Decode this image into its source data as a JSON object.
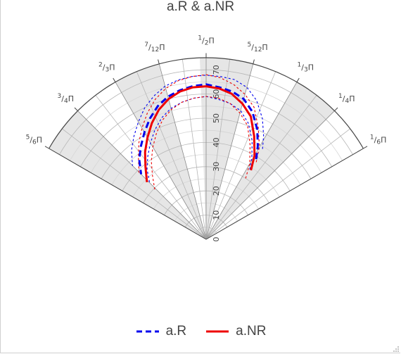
{
  "chart_data": {
    "type": "polar-line",
    "title": "a.R & a.NR",
    "angular_range_deg": [
      30,
      150
    ],
    "radial_range": [
      0,
      75
    ],
    "radial_ticks": [
      "0",
      "10",
      "20",
      "30",
      "40",
      "50",
      "60",
      "70"
    ],
    "angular_tick_labels": [
      {
        "angle_deg": 30,
        "num": "1",
        "den": "6",
        "sym": "Π"
      },
      {
        "angle_deg": 45,
        "num": "1",
        "den": "4",
        "sym": "Π"
      },
      {
        "angle_deg": 60,
        "num": "1",
        "den": "3",
        "sym": "Π"
      },
      {
        "angle_deg": 75,
        "num": "5",
        "den": "12",
        "sym": "Π"
      },
      {
        "angle_deg": 90,
        "num": "1",
        "den": "2",
        "sym": "Π"
      },
      {
        "angle_deg": 105,
        "num": "7",
        "den": "12",
        "sym": "Π"
      },
      {
        "angle_deg": 120,
        "num": "2",
        "den": "3",
        "sym": "Π"
      },
      {
        "angle_deg": 135,
        "num": "3",
        "den": "4",
        "sym": "Π"
      },
      {
        "angle_deg": 150,
        "num": "5",
        "den": "6",
        "sym": "Π"
      }
    ],
    "shaded_sectors_deg": [
      [
        45,
        60
      ],
      [
        75,
        90
      ],
      [
        105,
        120
      ],
      [
        135,
        150
      ],
      [
        88,
        92
      ]
    ],
    "series": [
      {
        "name": "a.R",
        "color": "#0000ee",
        "dash": "dashed",
        "theta_deg": [
          58,
          61,
          65,
          70,
          75,
          80,
          85,
          90,
          95,
          100,
          105,
          110,
          115,
          120,
          125,
          130,
          135
        ],
        "r": [
          39,
          44,
          50,
          56,
          60,
          62,
          63,
          64,
          63.5,
          62.5,
          61,
          58.5,
          55,
          51,
          47,
          43,
          38
        ],
        "band_upper": [
          44,
          49,
          55,
          61,
          65,
          67,
          67.5,
          67.8,
          67.5,
          66.8,
          65.5,
          63,
          60,
          56,
          52,
          48,
          43
        ],
        "band_lower": [
          34,
          39,
          45,
          51,
          55,
          57,
          58,
          59,
          58.5,
          57.5,
          56,
          53.5,
          50,
          46,
          42,
          38,
          33
        ]
      },
      {
        "name": "a.NR",
        "color": "#ee0000",
        "dash": "solid",
        "theta_deg": [
          57,
          60,
          65,
          70,
          75,
          80,
          85,
          90,
          95,
          100,
          105,
          110,
          115,
          120,
          125,
          130,
          136
        ],
        "r": [
          34,
          40,
          47,
          54,
          58,
          61,
          62.5,
          63.2,
          63,
          62,
          60,
          57,
          53,
          48.5,
          44,
          39,
          34
        ],
        "band_upper": [
          38,
          44,
          51,
          58,
          62,
          65,
          67,
          68,
          67.5,
          66.5,
          64.5,
          61.5,
          57.5,
          53,
          48.5,
          43.5,
          38.5
        ],
        "band_lower": [
          30,
          36,
          43,
          50,
          54,
          57,
          58.5,
          59,
          58.5,
          57.5,
          55.5,
          52.5,
          48.5,
          44,
          39.5,
          34.5,
          29.5
        ]
      }
    ],
    "legend_position": "bottom-center"
  }
}
